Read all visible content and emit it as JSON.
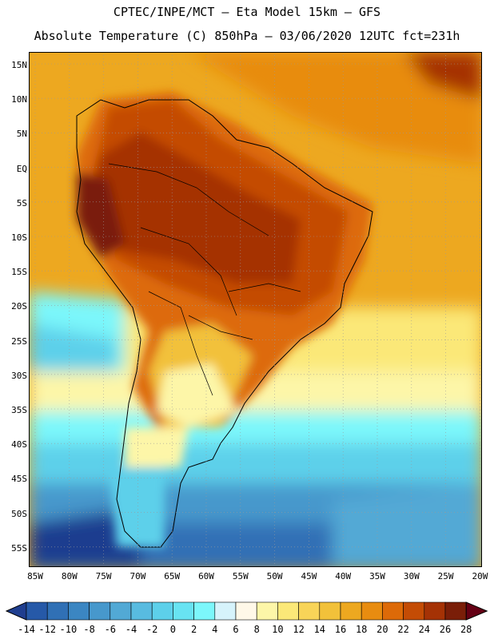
{
  "header": {
    "line1": "CPTEC/INPE/MCT –  Eta Model 15km – GFS",
    "line2": "Absolute Temperature (C) 850hPa – 03/06/2020 12UTC fct=231h"
  },
  "map": {
    "lat_labels": [
      "15N",
      "10N",
      "5N",
      "EQ",
      "5S",
      "10S",
      "15S",
      "20S",
      "25S",
      "30S",
      "35S",
      "40S",
      "45S",
      "50S",
      "55S"
    ],
    "lon_labels": [
      "85W",
      "80W",
      "75W",
      "70W",
      "65W",
      "60W",
      "55W",
      "50W",
      "45W",
      "40W",
      "35W",
      "30W",
      "25W",
      "20W"
    ],
    "field": "Absolute Temperature (C) at 850hPa"
  },
  "colorbar": {
    "labels": [
      "-14",
      "-12",
      "-10",
      "-8",
      "-6",
      "-4",
      "-2",
      "0",
      "2",
      "4",
      "6",
      "8",
      "10",
      "12",
      "14",
      "16",
      "18",
      "20",
      "22",
      "24",
      "26",
      "28"
    ],
    "colors": [
      "#1f3e8f",
      "#2659a8",
      "#3070b5",
      "#3b86c2",
      "#4798cc",
      "#52a9d5",
      "#58bbe0",
      "#5dd0ea",
      "#68e3f2",
      "#7cf7fb",
      "#d6f3fb",
      "#fff8e8",
      "#fdf6a8",
      "#fbe878",
      "#f8d458",
      "#f2c13a",
      "#eda820",
      "#e88c10",
      "#dd6a08",
      "#c44c05",
      "#a53205",
      "#7a1e08",
      "#650014"
    ]
  }
}
